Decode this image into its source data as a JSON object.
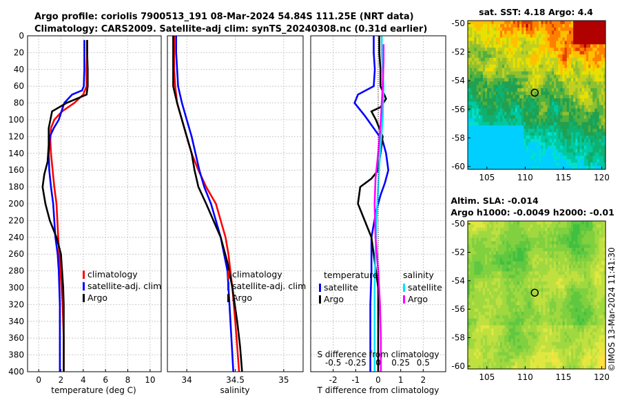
{
  "header": {
    "line1": "Argo profile: coriolis 7900513_191 08-Mar-2024 54.84S 111.25E (NRT data)",
    "line2": "Climatology: CARS2009. Satellite-adj clim: synTS_20240308.nc (0.31d earlier)"
  },
  "footer_stamp": "©IMOS 13-Mar-2024 11:41:30",
  "colors": {
    "climatology": "#ff0000",
    "satellite": "#0000ff",
    "argo": "#000000",
    "sal_satellite": "#00e5ff",
    "sal_argo": "#ff00ff",
    "marker": "#000000"
  },
  "chart_data": [
    {
      "type": "line",
      "id": "temperature",
      "xlabel": "temperature (deg C)",
      "ylabel": "",
      "xlim": [
        -1,
        11
      ],
      "ylim": [
        0,
        400
      ],
      "xticks": [
        0,
        2,
        4,
        6,
        8,
        10
      ],
      "yticks": [
        0,
        20,
        40,
        60,
        80,
        100,
        120,
        140,
        160,
        180,
        200,
        220,
        240,
        260,
        280,
        300,
        320,
        340,
        360,
        380,
        400
      ],
      "grid": true,
      "legend": {
        "placement": "bottom-right",
        "entries": [
          "climatology",
          "satellite-adj. clim",
          "Argo"
        ]
      },
      "series": [
        {
          "name": "climatology",
          "color": "#ff0000",
          "x": [
            4.35,
            4.35,
            4.3,
            4.3,
            4.0,
            3.2,
            2.1,
            1.4,
            1.1,
            1.05,
            1.1,
            1.25,
            1.4,
            1.6,
            1.75,
            1.9,
            2.05,
            2.15,
            2.2,
            2.25,
            2.25,
            2.25
          ],
          "y": [
            5,
            20,
            40,
            60,
            70,
            80,
            90,
            100,
            110,
            125,
            140,
            160,
            180,
            200,
            240,
            270,
            300,
            320,
            340,
            360,
            380,
            400
          ]
        },
        {
          "name": "satellite-adj. clim",
          "color": "#0000ff",
          "x": [
            4.1,
            4.1,
            4.1,
            4.05,
            3.9,
            3.0,
            2.3,
            1.8,
            1.35,
            1.0,
            0.9,
            0.95,
            1.1,
            1.3,
            1.5,
            1.7,
            1.8,
            1.85,
            1.9,
            1.9,
            1.9,
            1.9
          ],
          "y": [
            5,
            20,
            40,
            60,
            65,
            70,
            80,
            100,
            110,
            120,
            140,
            160,
            180,
            200,
            240,
            260,
            280,
            300,
            320,
            340,
            370,
            400
          ]
        },
        {
          "name": "Argo",
          "color": "#000000",
          "x": [
            4.35,
            4.35,
            4.4,
            4.4,
            4.3,
            2.5,
            1.2,
            0.9,
            0.9,
            0.8,
            0.5,
            0.35,
            0.6,
            1.0,
            1.6,
            2.0,
            2.1,
            2.2,
            2.25,
            2.25,
            2.25
          ],
          "y": [
            5,
            20,
            40,
            60,
            70,
            80,
            90,
            110,
            130,
            150,
            165,
            180,
            200,
            220,
            240,
            260,
            280,
            300,
            320,
            350,
            400
          ]
        }
      ]
    },
    {
      "type": "line",
      "id": "salinity",
      "xlabel": "salinity",
      "ylabel": "",
      "xlim": [
        33.8,
        35.2
      ],
      "ylim": [
        0,
        400
      ],
      "xticks": [
        34,
        34.5,
        35
      ],
      "xticklabels": [
        "34",
        "34.5",
        "35"
      ],
      "grid": true,
      "legend": {
        "placement": "bottom-right",
        "entries": [
          "climatology",
          "satellite-adj. clim",
          "Argo"
        ]
      },
      "series": [
        {
          "name": "climatology",
          "color": "#ff0000",
          "x": [
            33.87,
            33.87,
            33.87,
            33.88,
            33.9,
            33.95,
            34.0,
            34.05,
            34.12,
            34.2,
            34.3,
            34.4,
            34.43,
            34.47,
            34.5,
            34.52,
            34.54
          ],
          "y": [
            0,
            20,
            40,
            60,
            80,
            100,
            120,
            140,
            160,
            180,
            200,
            240,
            260,
            300,
            340,
            370,
            400
          ]
        },
        {
          "name": "satellite-adj. clim",
          "color": "#0000ff",
          "x": [
            33.89,
            33.89,
            33.9,
            33.91,
            33.95,
            34.0,
            34.05,
            34.09,
            34.13,
            34.18,
            34.25,
            34.35,
            34.42,
            34.44,
            34.46,
            34.48
          ],
          "y": [
            0,
            20,
            40,
            60,
            80,
            100,
            120,
            140,
            160,
            180,
            200,
            240,
            280,
            320,
            360,
            400
          ]
        },
        {
          "name": "Argo",
          "color": "#000000",
          "x": [
            33.86,
            33.86,
            33.86,
            33.86,
            33.9,
            33.95,
            34.0,
            34.05,
            34.08,
            34.1,
            34.12,
            34.2,
            34.35,
            34.42,
            34.47,
            34.52,
            34.55,
            34.57
          ],
          "y": [
            0,
            20,
            40,
            60,
            80,
            100,
            120,
            140,
            160,
            170,
            180,
            200,
            240,
            270,
            300,
            340,
            370,
            400
          ]
        }
      ]
    },
    {
      "type": "line",
      "id": "differences",
      "xlabel": "T difference from climatology",
      "xlabel_top": "S difference from climatology",
      "ylabel": "",
      "xlim": [
        -3,
        3
      ],
      "ylim": [
        0,
        400
      ],
      "xticks": [
        -2,
        -1,
        0,
        1,
        2
      ],
      "xticklabels": [
        "-2",
        "-1",
        "0",
        "1",
        "2"
      ],
      "sticks": [
        -0.5,
        -0.25,
        0,
        0.25,
        0.5
      ],
      "sticklabels": [
        "-0.5",
        "-0.25",
        "0",
        "0.25",
        "0.5"
      ],
      "slim": [
        -0.75,
        0.75
      ],
      "grid": true,
      "legend": {
        "placement": "bottom",
        "groups": [
          {
            "title": "temperature",
            "entries": [
              "satellite",
              "Argo"
            ]
          },
          {
            "title": "salinity",
            "entries": [
              "satellite",
              "Argo"
            ]
          }
        ]
      },
      "series": [
        {
          "name": "temperature satellite",
          "group": "temperature",
          "color": "#0000ff",
          "x": [
            -0.2,
            -0.2,
            -0.15,
            -0.2,
            -0.9,
            -1.05,
            -0.6,
            -0.2,
            0.2,
            0.35,
            0.45,
            0.3,
            0.1,
            -0.1,
            -0.3,
            -0.3,
            -0.35,
            -0.35,
            -0.35,
            -0.35
          ],
          "y": [
            0,
            20,
            40,
            60,
            70,
            80,
            95,
            110,
            125,
            140,
            160,
            175,
            190,
            210,
            240,
            280,
            320,
            350,
            380,
            400
          ]
        },
        {
          "name": "temperature Argo",
          "group": "temperature",
          "color": "#000000",
          "x": [
            0.05,
            0.05,
            0.1,
            0.1,
            0.35,
            0.1,
            -0.3,
            -0.1,
            0.2,
            0.1,
            0.0,
            -0.3,
            -0.8,
            -0.9,
            -0.6,
            -0.3,
            -0.2,
            -0.1,
            0.0,
            0.0,
            0.0,
            0.0
          ],
          "y": [
            0,
            20,
            40,
            60,
            75,
            85,
            90,
            100,
            120,
            140,
            160,
            170,
            180,
            200,
            220,
            240,
            260,
            280,
            300,
            340,
            370,
            400
          ]
        },
        {
          "name": "salinity satellite",
          "group": "salinity",
          "color": "#00e5ff",
          "x": [
            0.04,
            0.04,
            0.05,
            0.06,
            0.05,
            0.02,
            0.0,
            -0.02,
            -0.03,
            -0.04,
            -0.04,
            -0.04
          ],
          "y": [
            0,
            20,
            40,
            60,
            100,
            140,
            180,
            220,
            260,
            300,
            350,
            400
          ]
        },
        {
          "name": "salinity Argo",
          "group": "salinity",
          "color": "#ff00ff",
          "x": [
            0.06,
            0.06,
            0.05,
            0.03,
            0.0,
            -0.03,
            -0.04,
            -0.03,
            0.0,
            0.02,
            0.03,
            0.03
          ],
          "y": [
            10,
            30,
            60,
            100,
            140,
            170,
            200,
            240,
            280,
            320,
            360,
            400
          ]
        }
      ]
    },
    {
      "type": "heatmap",
      "id": "sst_map",
      "title": "sat. SST: 4.18 Argo: 4.4",
      "xticks": [
        105,
        110,
        115,
        120
      ],
      "yticks": [
        -50,
        -52,
        -54,
        -56,
        -58,
        -60
      ],
      "xlim": [
        102.5,
        120.5
      ],
      "ylim": [
        -60.2,
        -49.8
      ],
      "marker": {
        "lon": 111.25,
        "lat": -54.84
      }
    },
    {
      "type": "heatmap",
      "id": "sla_map",
      "title": "Altim. SLA: -0.014",
      "subtitle": "Argo h1000: -0.0049 h2000: -0.01",
      "xticks": [
        105,
        110,
        115,
        120
      ],
      "yticks": [
        -50,
        -52,
        -54,
        -56,
        -58,
        -60
      ],
      "xlim": [
        102.5,
        120.5
      ],
      "ylim": [
        -60.2,
        -49.8
      ],
      "marker": {
        "lon": 111.25,
        "lat": -54.84
      }
    }
  ]
}
